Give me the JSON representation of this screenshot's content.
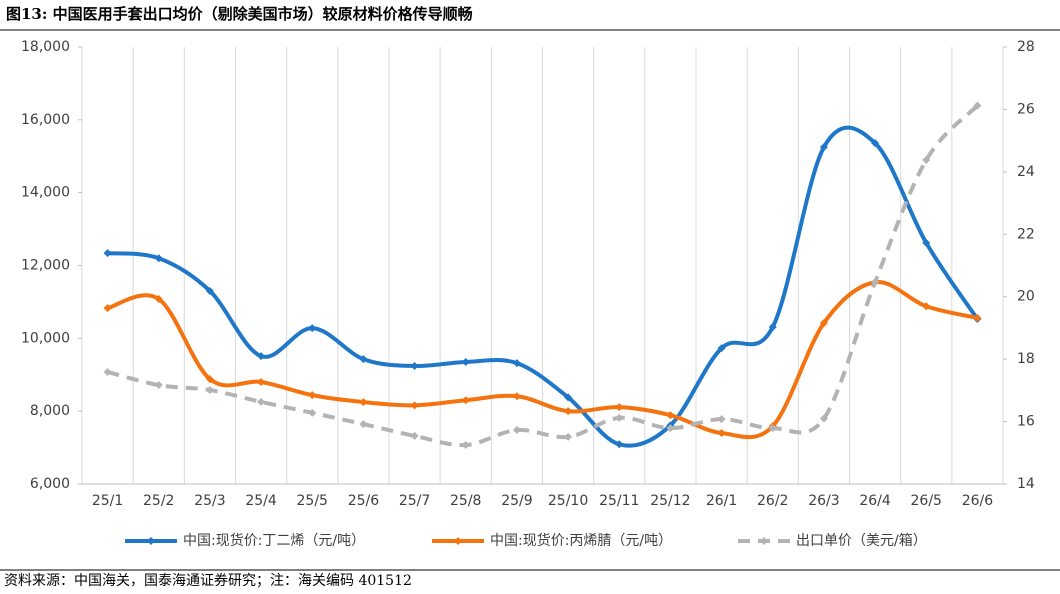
{
  "title": "图13:  中国医用手套出口均价（剔除美国市场）较原材料价格传导顺畅",
  "source": "资料来源：中国海关，国泰海通证券研究；注：海关编码 401512",
  "chart_data": {
    "type": "line",
    "smooth": true,
    "vertical_grid": true,
    "legend": "bottom",
    "categories": [
      "25/1",
      "25/2",
      "25/3",
      "25/4",
      "25/5",
      "25/6",
      "25/7",
      "25/8",
      "25/9",
      "25/10",
      "25/11",
      "25/12",
      "26/1",
      "26/2",
      "26/3",
      "26/4",
      "26/5",
      "26/6"
    ],
    "ylim": [
      6000,
      18000
    ],
    "yticks": [
      {
        "value": 6000,
        "label": "6,000"
      },
      {
        "value": 8000,
        "label": "8,000"
      },
      {
        "value": 10000,
        "label": "10,000"
      },
      {
        "value": 12000,
        "label": "12,000"
      },
      {
        "value": 14000,
        "label": "14,000"
      },
      {
        "value": 16000,
        "label": "16,000"
      },
      {
        "value": 18000,
        "label": "18,000"
      }
    ],
    "y2lim": [
      14,
      28
    ],
    "y2ticks": [
      14,
      16,
      18,
      20,
      22,
      24,
      26,
      28
    ],
    "series": [
      {
        "name": "中国:现货价:丁二烯（元/吨）",
        "color": "#1f77c8",
        "dash": false,
        "values": [
          12340,
          12200,
          11300,
          9510,
          10280,
          9430,
          9240,
          9350,
          9320,
          8380,
          7090,
          7610,
          9730,
          10310,
          15250,
          15360,
          12620,
          10530
        ]
      },
      {
        "name": "中国:现货价:丙烯腈（元/吨）",
        "color": "#f5730f",
        "dash": false,
        "values": [
          10830,
          11080,
          8880,
          8800,
          8440,
          8250,
          8160,
          8300,
          8410,
          8000,
          8110,
          7890,
          7400,
          7590,
          10420,
          11540,
          10880,
          10560
        ]
      },
      {
        "name": "出口单价（美元/箱）",
        "color": "#b3b3b3",
        "dash": true,
        "axis": "y2",
        "values": [
          17.59,
          17.17,
          17.01,
          16.63,
          16.28,
          15.92,
          15.54,
          15.25,
          15.73,
          15.51,
          16.12,
          15.79,
          16.08,
          15.79,
          16.1,
          20.47,
          24.38,
          26.12
        ]
      }
    ]
  }
}
